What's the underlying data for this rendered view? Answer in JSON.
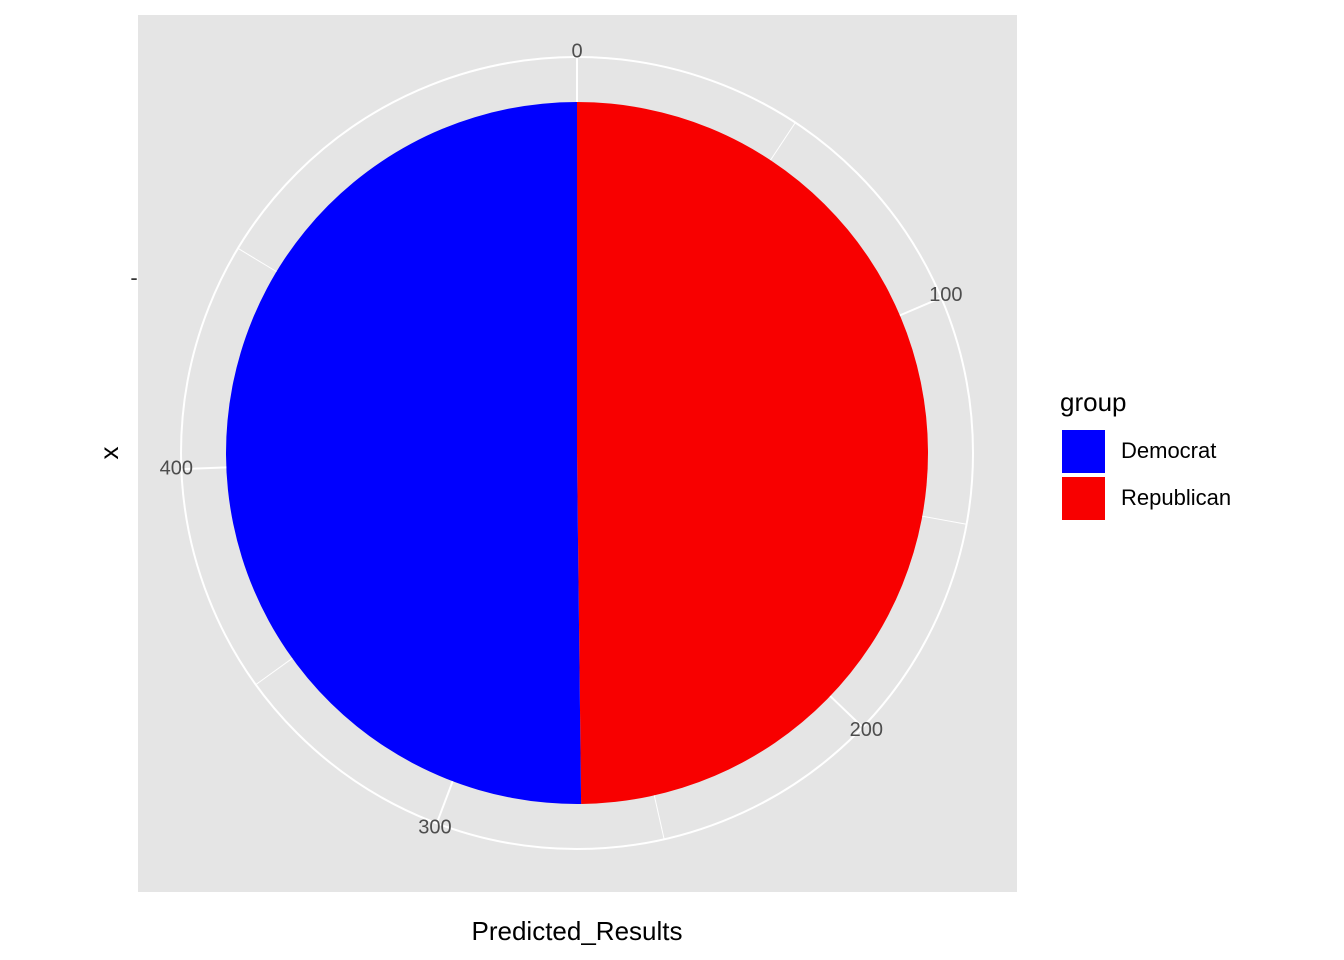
{
  "chart_data": {
    "type": "pie",
    "title": "",
    "xlabel": "Predicted_Results",
    "ylabel": "x",
    "y_tick_label": "-",
    "theta_axis": {
      "range": [
        0,
        538
      ],
      "ticks": [
        0,
        100,
        200,
        300,
        400
      ],
      "tick_labels": [
        "0",
        "100",
        "200",
        "300",
        "400"
      ]
    },
    "slices": [
      {
        "name": "Republican",
        "value": 268,
        "color": "#f80000"
      },
      {
        "name": "Democrat",
        "value": 270,
        "color": "#0000ff"
      }
    ],
    "legend": {
      "title": "group",
      "placement": "right",
      "entries": [
        {
          "label": "Democrat",
          "color": "#0000ff"
        },
        {
          "label": "Republican",
          "color": "#f80000"
        }
      ]
    },
    "panel_background": "#e5e5e5",
    "grid_color": "#ffffff"
  }
}
